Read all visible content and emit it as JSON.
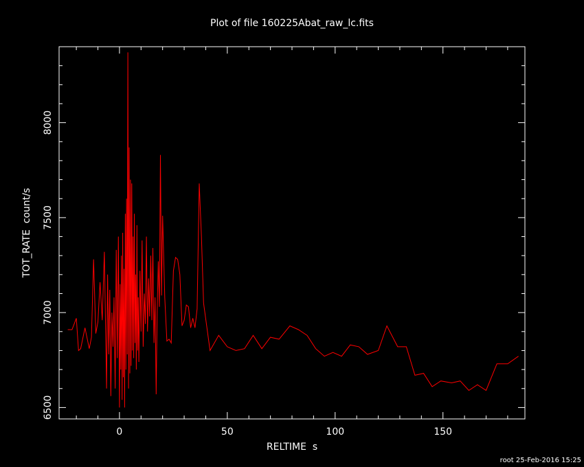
{
  "chart_data": {
    "type": "line",
    "title": "Plot of file 160225Abat_raw_lc.fits",
    "xlabel": "RELTIME  s",
    "ylabel": "TOT_RATE  count/s",
    "xlim": [
      -28,
      188
    ],
    "ylim": [
      6440,
      8400
    ],
    "xticks": [
      0,
      50,
      100,
      150
    ],
    "yticks": [
      6500,
      7000,
      7500,
      8000
    ],
    "x_minor_step": 10,
    "y_minor_step": 100,
    "grid": false,
    "legend": "none",
    "series": [
      {
        "color": "#ff0000",
        "points": [
          [
            -24,
            6910
          ],
          [
            -22,
            6910
          ],
          [
            -20,
            6970
          ],
          [
            -19,
            6800
          ],
          [
            -18,
            6810
          ],
          [
            -16,
            6920
          ],
          [
            -14,
            6810
          ],
          [
            -13,
            6870
          ],
          [
            -12,
            7280
          ],
          [
            -11,
            6890
          ],
          [
            -10,
            6950
          ],
          [
            -9,
            7160
          ],
          [
            -8,
            6960
          ],
          [
            -7,
            7320
          ],
          [
            -6,
            6600
          ],
          [
            -5.5,
            7200
          ],
          [
            -5,
            6780
          ],
          [
            -4.5,
            7120
          ],
          [
            -4,
            6560
          ],
          [
            -3.5,
            7000
          ],
          [
            -3,
            6820
          ],
          [
            -2.5,
            7080
          ],
          [
            -2,
            6600
          ],
          [
            -1.5,
            7330
          ],
          [
            -1,
            6760
          ],
          [
            -0.5,
            7400
          ],
          [
            0,
            6500
          ],
          [
            0.3,
            7150
          ],
          [
            0.6,
            6700
          ],
          [
            0.9,
            7300
          ],
          [
            1.2,
            6540
          ],
          [
            1.5,
            7420
          ],
          [
            1.8,
            6660
          ],
          [
            2.1,
            7230
          ],
          [
            2.4,
            6500
          ],
          [
            2.7,
            7520
          ],
          [
            3.0,
            6700
          ],
          [
            3.3,
            7600
          ],
          [
            3.6,
            6780
          ],
          [
            3.9,
            8370
          ],
          [
            4.2,
            6600
          ],
          [
            4.5,
            7870
          ],
          [
            4.8,
            6680
          ],
          [
            5.1,
            7700
          ],
          [
            5.4,
            6720
          ],
          [
            5.7,
            7680
          ],
          [
            6.0,
            6800
          ],
          [
            6.3,
            7400
          ],
          [
            6.6,
            6760
          ],
          [
            6.9,
            7520
          ],
          [
            7.2,
            6840
          ],
          [
            7.5,
            7200
          ],
          [
            7.8,
            6700
          ],
          [
            8.1,
            7460
          ],
          [
            8.4,
            6800
          ],
          [
            8.7,
            7080
          ],
          [
            9.0,
            6740
          ],
          [
            9.5,
            7220
          ],
          [
            10.0,
            6900
          ],
          [
            10.5,
            7380
          ],
          [
            11.0,
            6820
          ],
          [
            11.5,
            7100
          ],
          [
            12.0,
            6940
          ],
          [
            12.5,
            7400
          ],
          [
            13.0,
            6900
          ],
          [
            13.5,
            7180
          ],
          [
            14.0,
            6980
          ],
          [
            14.5,
            7300
          ],
          [
            15.0,
            6960
          ],
          [
            15.5,
            7340
          ],
          [
            16.0,
            6840
          ],
          [
            16.5,
            7080
          ],
          [
            17.0,
            6570
          ],
          [
            17.5,
            7010
          ],
          [
            18.0,
            7270
          ],
          [
            18.5,
            7030
          ],
          [
            19.0,
            7830
          ],
          [
            19.5,
            7090
          ],
          [
            20.0,
            7510
          ],
          [
            21.0,
            7080
          ],
          [
            22.0,
            6850
          ],
          [
            23.0,
            6860
          ],
          [
            24.0,
            6840
          ],
          [
            25.0,
            7220
          ],
          [
            26.0,
            7290
          ],
          [
            27.0,
            7280
          ],
          [
            28.0,
            7200
          ],
          [
            29.0,
            6930
          ],
          [
            30.0,
            6960
          ],
          [
            31.0,
            7040
          ],
          [
            32.0,
            7030
          ],
          [
            33.0,
            6920
          ],
          [
            34.0,
            6970
          ],
          [
            35.0,
            6920
          ],
          [
            36.0,
            7020
          ],
          [
            37.0,
            7680
          ],
          [
            38.0,
            7400
          ],
          [
            39.0,
            7050
          ],
          [
            42.0,
            6800
          ],
          [
            46.0,
            6880
          ],
          [
            50.0,
            6820
          ],
          [
            54.0,
            6800
          ],
          [
            58.0,
            6810
          ],
          [
            62.0,
            6880
          ],
          [
            66.0,
            6810
          ],
          [
            70.0,
            6870
          ],
          [
            74.0,
            6860
          ],
          [
            79.0,
            6930
          ],
          [
            83.0,
            6910
          ],
          [
            87.0,
            6880
          ],
          [
            91.0,
            6810
          ],
          [
            95.0,
            6770
          ],
          [
            99.0,
            6790
          ],
          [
            103.0,
            6770
          ],
          [
            107.0,
            6830
          ],
          [
            111.0,
            6820
          ],
          [
            115.0,
            6780
          ],
          [
            120.0,
            6800
          ],
          [
            124.0,
            6930
          ],
          [
            129.0,
            6820
          ],
          [
            133.0,
            6820
          ],
          [
            137.0,
            6670
          ],
          [
            141.0,
            6680
          ],
          [
            145.0,
            6610
          ],
          [
            149.0,
            6640
          ],
          [
            154.0,
            6630
          ],
          [
            158.0,
            6640
          ],
          [
            162.0,
            6590
          ],
          [
            166.0,
            6620
          ],
          [
            170.0,
            6590
          ],
          [
            175.0,
            6730
          ],
          [
            180.0,
            6730
          ],
          [
            185.0,
            6770
          ]
        ]
      }
    ],
    "footer": "root 25-Feb-2016 15:25",
    "colors": {
      "background": "#000000",
      "axes": "#ffffff",
      "text": "#ffffff",
      "series": "#ff0000"
    }
  }
}
